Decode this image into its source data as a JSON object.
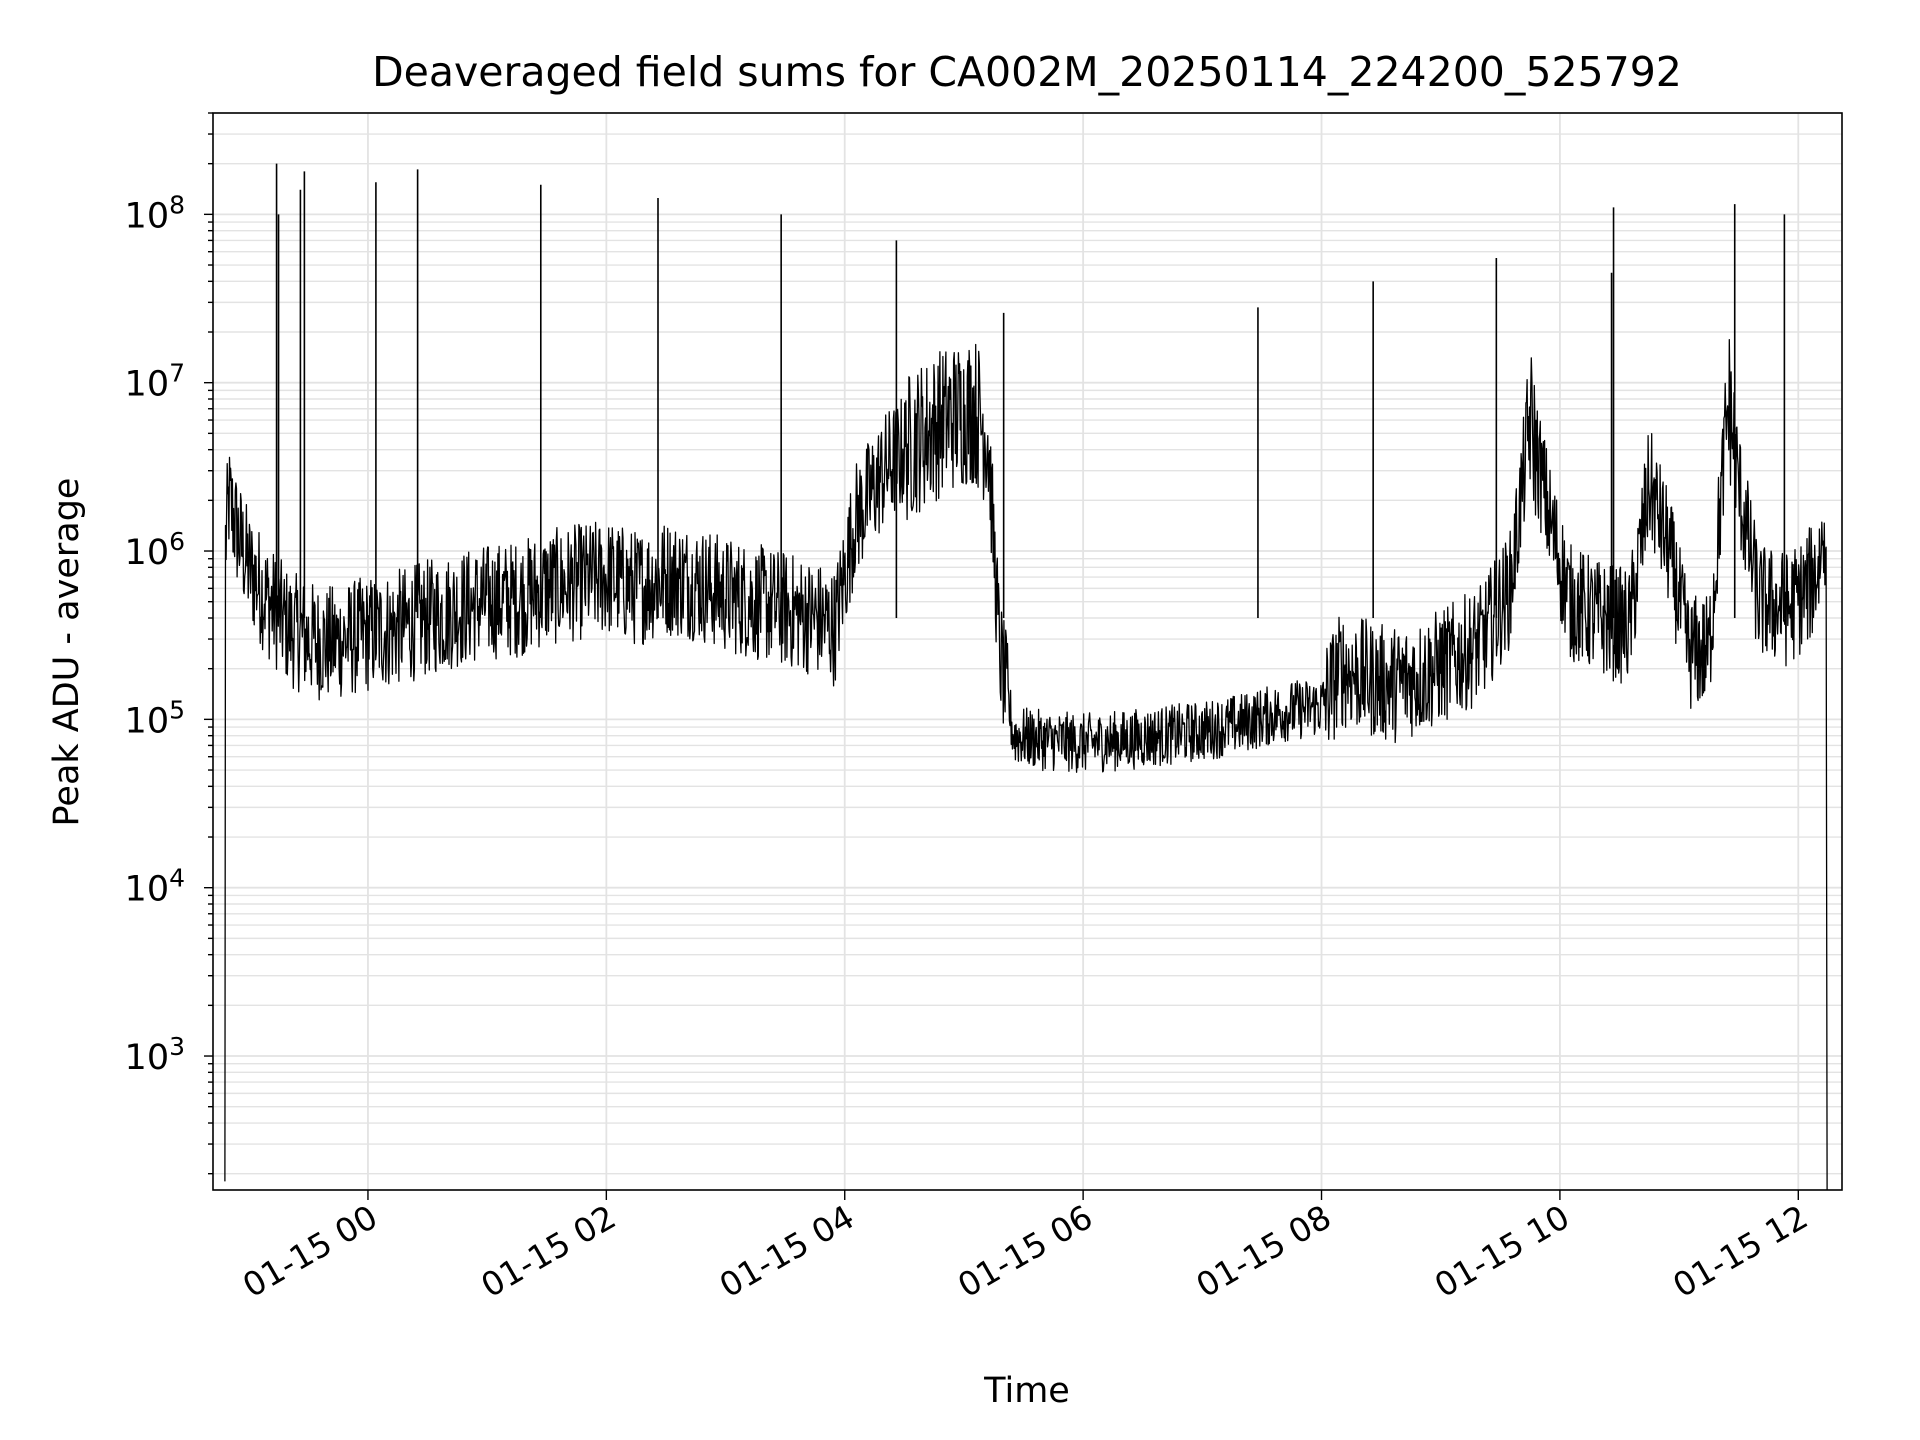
{
  "chart_data": {
    "type": "line",
    "title": "Deaveraged field sums for CA002M_20250114_224200_525792",
    "xlabel": "Time",
    "ylabel": "Peak ADU - average",
    "yscale": "log",
    "ylim": [
      160,
      400000000
    ],
    "xlim": [
      "2025-01-14 22:42",
      "2025-01-15 12:22"
    ],
    "grid": true,
    "line_color": "#000000",
    "x_ticks": [
      "2025-01-15 00:00",
      "2025-01-15 02:00",
      "2025-01-15 04:00",
      "2025-01-15 06:00",
      "2025-01-15 08:00",
      "2025-01-15 10:00",
      "2025-01-15 12:00"
    ],
    "x_tick_labels": [
      "01-15 00",
      "01-15 02",
      "01-15 04",
      "01-15 06",
      "01-15 08",
      "01-15 10",
      "01-15 12"
    ],
    "y_ticks": [
      1000,
      10000,
      100000,
      1000000,
      10000000,
      100000000
    ],
    "y_tick_labels": [
      {
        "base": "10",
        "exp": "3"
      },
      {
        "base": "10",
        "exp": "4"
      },
      {
        "base": "10",
        "exp": "5"
      },
      {
        "base": "10",
        "exp": "6"
      },
      {
        "base": "10",
        "exp": "7"
      },
      {
        "base": "10",
        "exp": "8"
      }
    ],
    "series": [
      {
        "x": [
          "2025-01-14 22:48",
          "2025-01-14 22:50",
          "2025-01-14 22:55",
          "2025-01-14 23:00",
          "2025-01-14 23:10",
          "2025-01-14 23:20",
          "2025-01-14 23:30",
          "2025-01-14 23:40",
          "2025-01-14 23:50",
          "2025-01-15 00:00",
          "2025-01-15 00:15",
          "2025-01-15 00:30",
          "2025-01-15 00:45",
          "2025-01-15 01:00",
          "2025-01-15 01:15",
          "2025-01-15 01:30",
          "2025-01-15 01:45",
          "2025-01-15 02:00",
          "2025-01-15 02:15",
          "2025-01-15 02:30",
          "2025-01-15 02:45",
          "2025-01-15 03:00",
          "2025-01-15 03:15",
          "2025-01-15 03:30",
          "2025-01-15 03:45",
          "2025-01-15 03:55",
          "2025-01-15 04:05",
          "2025-01-15 04:20",
          "2025-01-15 04:35",
          "2025-01-15 04:50",
          "2025-01-15 05:05",
          "2025-01-15 05:12",
          "2025-01-15 05:18",
          "2025-01-15 05:25",
          "2025-01-15 05:40",
          "2025-01-15 06:00",
          "2025-01-15 06:20",
          "2025-01-15 06:40",
          "2025-01-15 07:00",
          "2025-01-15 07:20",
          "2025-01-15 07:40",
          "2025-01-15 08:00",
          "2025-01-15 08:10",
          "2025-01-15 08:20",
          "2025-01-15 08:35",
          "2025-01-15 08:50",
          "2025-01-15 09:05",
          "2025-01-15 09:20",
          "2025-01-15 09:35",
          "2025-01-15 09:45",
          "2025-01-15 09:55",
          "2025-01-15 10:05",
          "2025-01-15 10:20",
          "2025-01-15 10:35",
          "2025-01-15 10:45",
          "2025-01-15 10:55",
          "2025-01-15 11:05",
          "2025-01-15 11:15",
          "2025-01-15 11:25",
          "2025-01-15 11:30",
          "2025-01-15 11:40",
          "2025-01-15 11:55",
          "2025-01-15 12:05",
          "2025-01-15 12:10",
          "2025-01-15 12:14"
        ],
        "y": [
          180,
          2000000,
          1200000,
          800000,
          500000,
          350000,
          300000,
          280000,
          300000,
          320000,
          350000,
          400000,
          450000,
          500000,
          520000,
          600000,
          650000,
          700000,
          600000,
          700000,
          650000,
          550000,
          500000,
          450000,
          400000,
          350000,
          1500000,
          3000000,
          4500000,
          6000000,
          7000000,
          5000000,
          250000,
          80000,
          75000,
          72000,
          75000,
          80000,
          85000,
          95000,
          110000,
          120000,
          200000,
          180000,
          160000,
          180000,
          220000,
          280000,
          600000,
          6000000,
          1500000,
          500000,
          400000,
          350000,
          2500000,
          1000000,
          250000,
          250000,
          8000000,
          2500000,
          500000,
          450000,
          600000,
          800000,
          1500000
        ],
        "spikes": {
          "x": [
            "2025-01-14 23:14",
            "2025-01-14 23:15",
            "2025-01-14 23:26",
            "2025-01-14 23:28",
            "2025-01-15 00:04",
            "2025-01-15 00:25",
            "2025-01-15 01:27",
            "2025-01-15 02:26",
            "2025-01-15 03:28",
            "2025-01-15 04:26",
            "2025-01-15 05:20",
            "2025-01-15 07:28",
            "2025-01-15 08:26",
            "2025-01-15 09:28",
            "2025-01-15 10:27",
            "2025-01-15 10:26",
            "2025-01-15 11:28",
            "2025-01-15 11:53"
          ],
          "y": [
            200000000,
            100000000,
            140000000,
            180000000,
            155000000,
            185000000,
            150000000,
            125000000,
            100000000,
            70000000,
            26000000,
            28000000,
            40000000,
            55000000,
            110000000,
            45000000,
            115000000,
            100000000
          ]
        }
      }
    ]
  }
}
